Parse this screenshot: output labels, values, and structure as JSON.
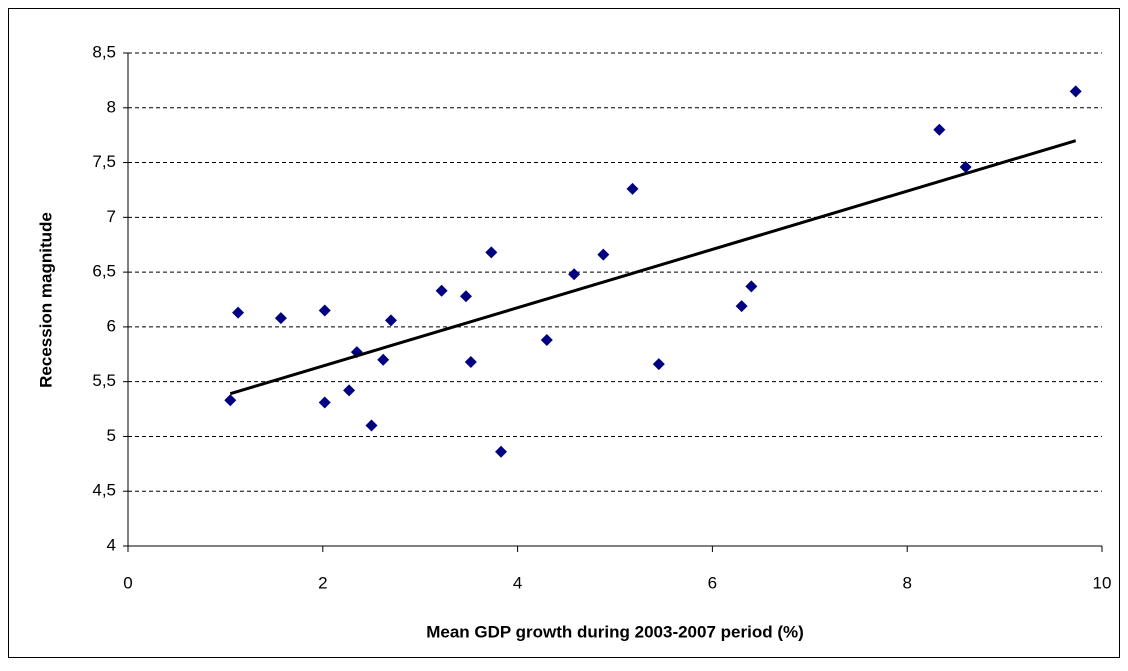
{
  "chart_data": {
    "type": "scatter",
    "x_label": "Mean GDP growth during 2003-2007 period (%)",
    "y_label": "Recession magnitude",
    "series": [
      {
        "color": "#000080",
        "x": [
          1.05,
          1.13,
          1.57,
          2.02,
          2.02,
          2.27,
          2.35,
          2.5,
          2.62,
          2.7,
          3.22,
          3.47,
          3.52,
          3.73,
          3.83,
          4.3,
          4.58,
          4.88,
          5.18,
          5.45,
          6.3,
          6.4,
          8.33,
          8.6,
          9.73
        ],
        "values": [
          5.33,
          6.13,
          6.08,
          6.15,
          5.31,
          5.42,
          5.77,
          5.1,
          5.7,
          6.06,
          6.33,
          6.28,
          5.68,
          6.68,
          4.86,
          5.88,
          6.48,
          6.66,
          7.26,
          5.66,
          6.19,
          6.37,
          7.8,
          7.46,
          8.15
        ]
      }
    ],
    "trendline": {
      "color": "#000000",
      "x": [
        1.05,
        9.73
      ],
      "values": [
        5.39,
        7.7
      ]
    },
    "xlim": [
      0,
      10
    ],
    "xticks": [
      0,
      2,
      4,
      6,
      8,
      10
    ],
    "ylim": [
      4,
      8.5
    ],
    "yticks": [
      4,
      {
        "value": 4.5,
        "label": "4,5"
      },
      5,
      {
        "value": 5.5,
        "label": "5,5"
      },
      6,
      {
        "value": 6.5,
        "label": "6,5"
      },
      7,
      {
        "value": 7.5,
        "label": "7,5"
      },
      8,
      {
        "value": 8.5,
        "label": "8,5"
      }
    ],
    "grid": true
  }
}
